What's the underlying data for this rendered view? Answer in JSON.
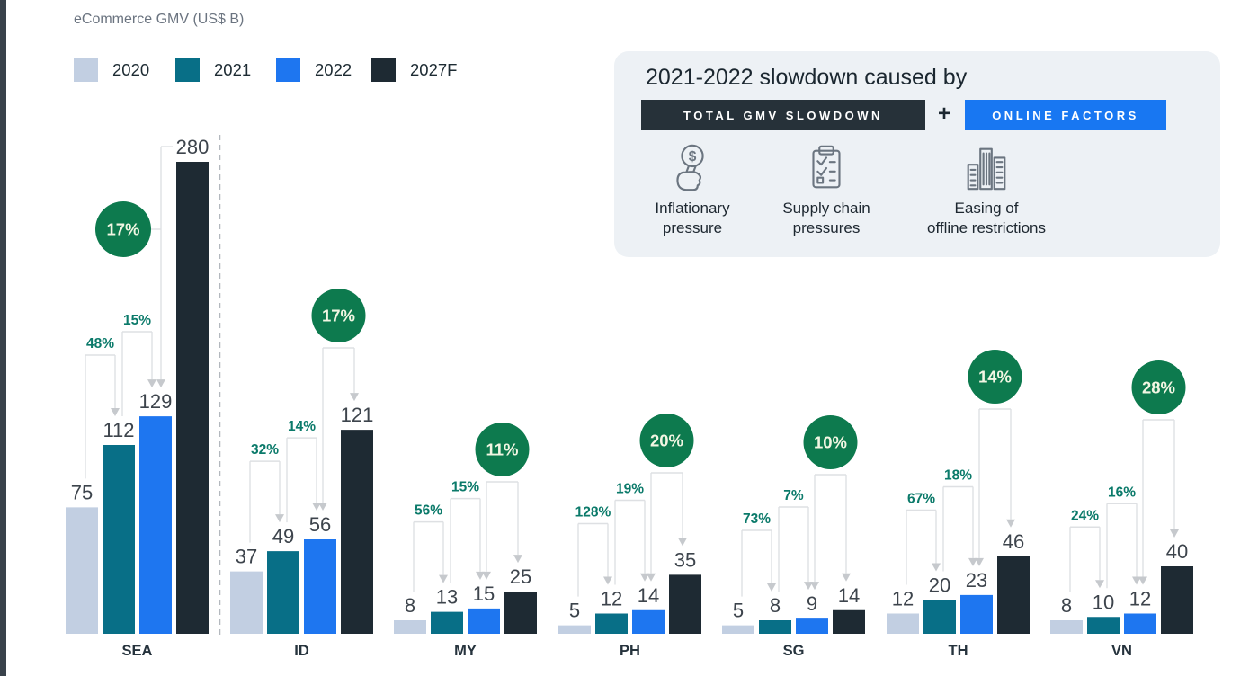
{
  "header": {
    "chart_title": "eCommerce GMV (US$ B)"
  },
  "legend": [
    {
      "label": "2020",
      "color": "#c2cfe2"
    },
    {
      "label": "2021",
      "color": "#086f87"
    },
    {
      "label": "2022",
      "color": "#1e76f0"
    },
    {
      "label": "2027F",
      "color": "#1e2a33"
    }
  ],
  "panel": {
    "title": "2021-2022 slowdown caused by",
    "badge_dark": "TOTAL GMV SLOWDOWN",
    "plus": "+",
    "badge_blue": "ONLINE FACTORS",
    "colors": {
      "badge_dark_bg": "#263139",
      "badge_blue_bg": "#1877f2",
      "panel_bg": "#edf1f5"
    },
    "factors": [
      {
        "icon": "inflation-hand-dollar-icon",
        "label": "Inflationary\npressure"
      },
      {
        "icon": "supply-chain-checklist-icon",
        "label": "Supply chain\npressures"
      },
      {
        "icon": "offline-buildings-icon",
        "label": "Easing of\noffline restrictions"
      }
    ]
  },
  "chart_data": {
    "type": "bar",
    "title": "eCommerce GMV (US$ B)",
    "ylabel": "GMV (US$ B)",
    "ylim": [
      0,
      280
    ],
    "grid": false,
    "legend_position": "top-left",
    "categories": [
      "SEA",
      "ID",
      "MY",
      "PH",
      "SG",
      "TH",
      "VN"
    ],
    "series": [
      {
        "name": "2020",
        "color": "#c2cfe2",
        "values": [
          75,
          37,
          8,
          5,
          5,
          12,
          8
        ]
      },
      {
        "name": "2021",
        "color": "#086f87",
        "values": [
          112,
          49,
          13,
          12,
          8,
          20,
          10
        ]
      },
      {
        "name": "2022",
        "color": "#1e76f0",
        "values": [
          129,
          56,
          15,
          14,
          9,
          23,
          12
        ]
      },
      {
        "name": "2027F",
        "color": "#1e2a33",
        "values": [
          280,
          121,
          25,
          35,
          14,
          46,
          40
        ]
      }
    ],
    "growth_2020_to_2021": [
      "48%",
      "32%",
      "56%",
      "128%",
      "73%",
      "67%",
      "24%"
    ],
    "growth_2021_to_2022": [
      "15%",
      "14%",
      "15%",
      "19%",
      "7%",
      "18%",
      "16%"
    ],
    "cagr_2022_to_2027": [
      "17%",
      "17%",
      "11%",
      "20%",
      "10%",
      "14%",
      "28%"
    ],
    "separator_after_category": "SEA",
    "colors": {
      "growth_label": "#0b7a6a",
      "cagr_circle": "#0d7a4e",
      "cagr_text": "#f2f6e3",
      "value_label": "#3d444c",
      "category_label": "#26333d",
      "bracket_line": "#dee0e3",
      "arrow": "#c6c9cd",
      "separator": "#b3b8be"
    },
    "layout_hints": {
      "circle_cy": [
        255,
        351,
        500,
        490,
        492,
        419,
        431
      ],
      "circle_style": [
        "left",
        "top",
        "top",
        "top",
        "top",
        "top",
        "top"
      ]
    }
  }
}
